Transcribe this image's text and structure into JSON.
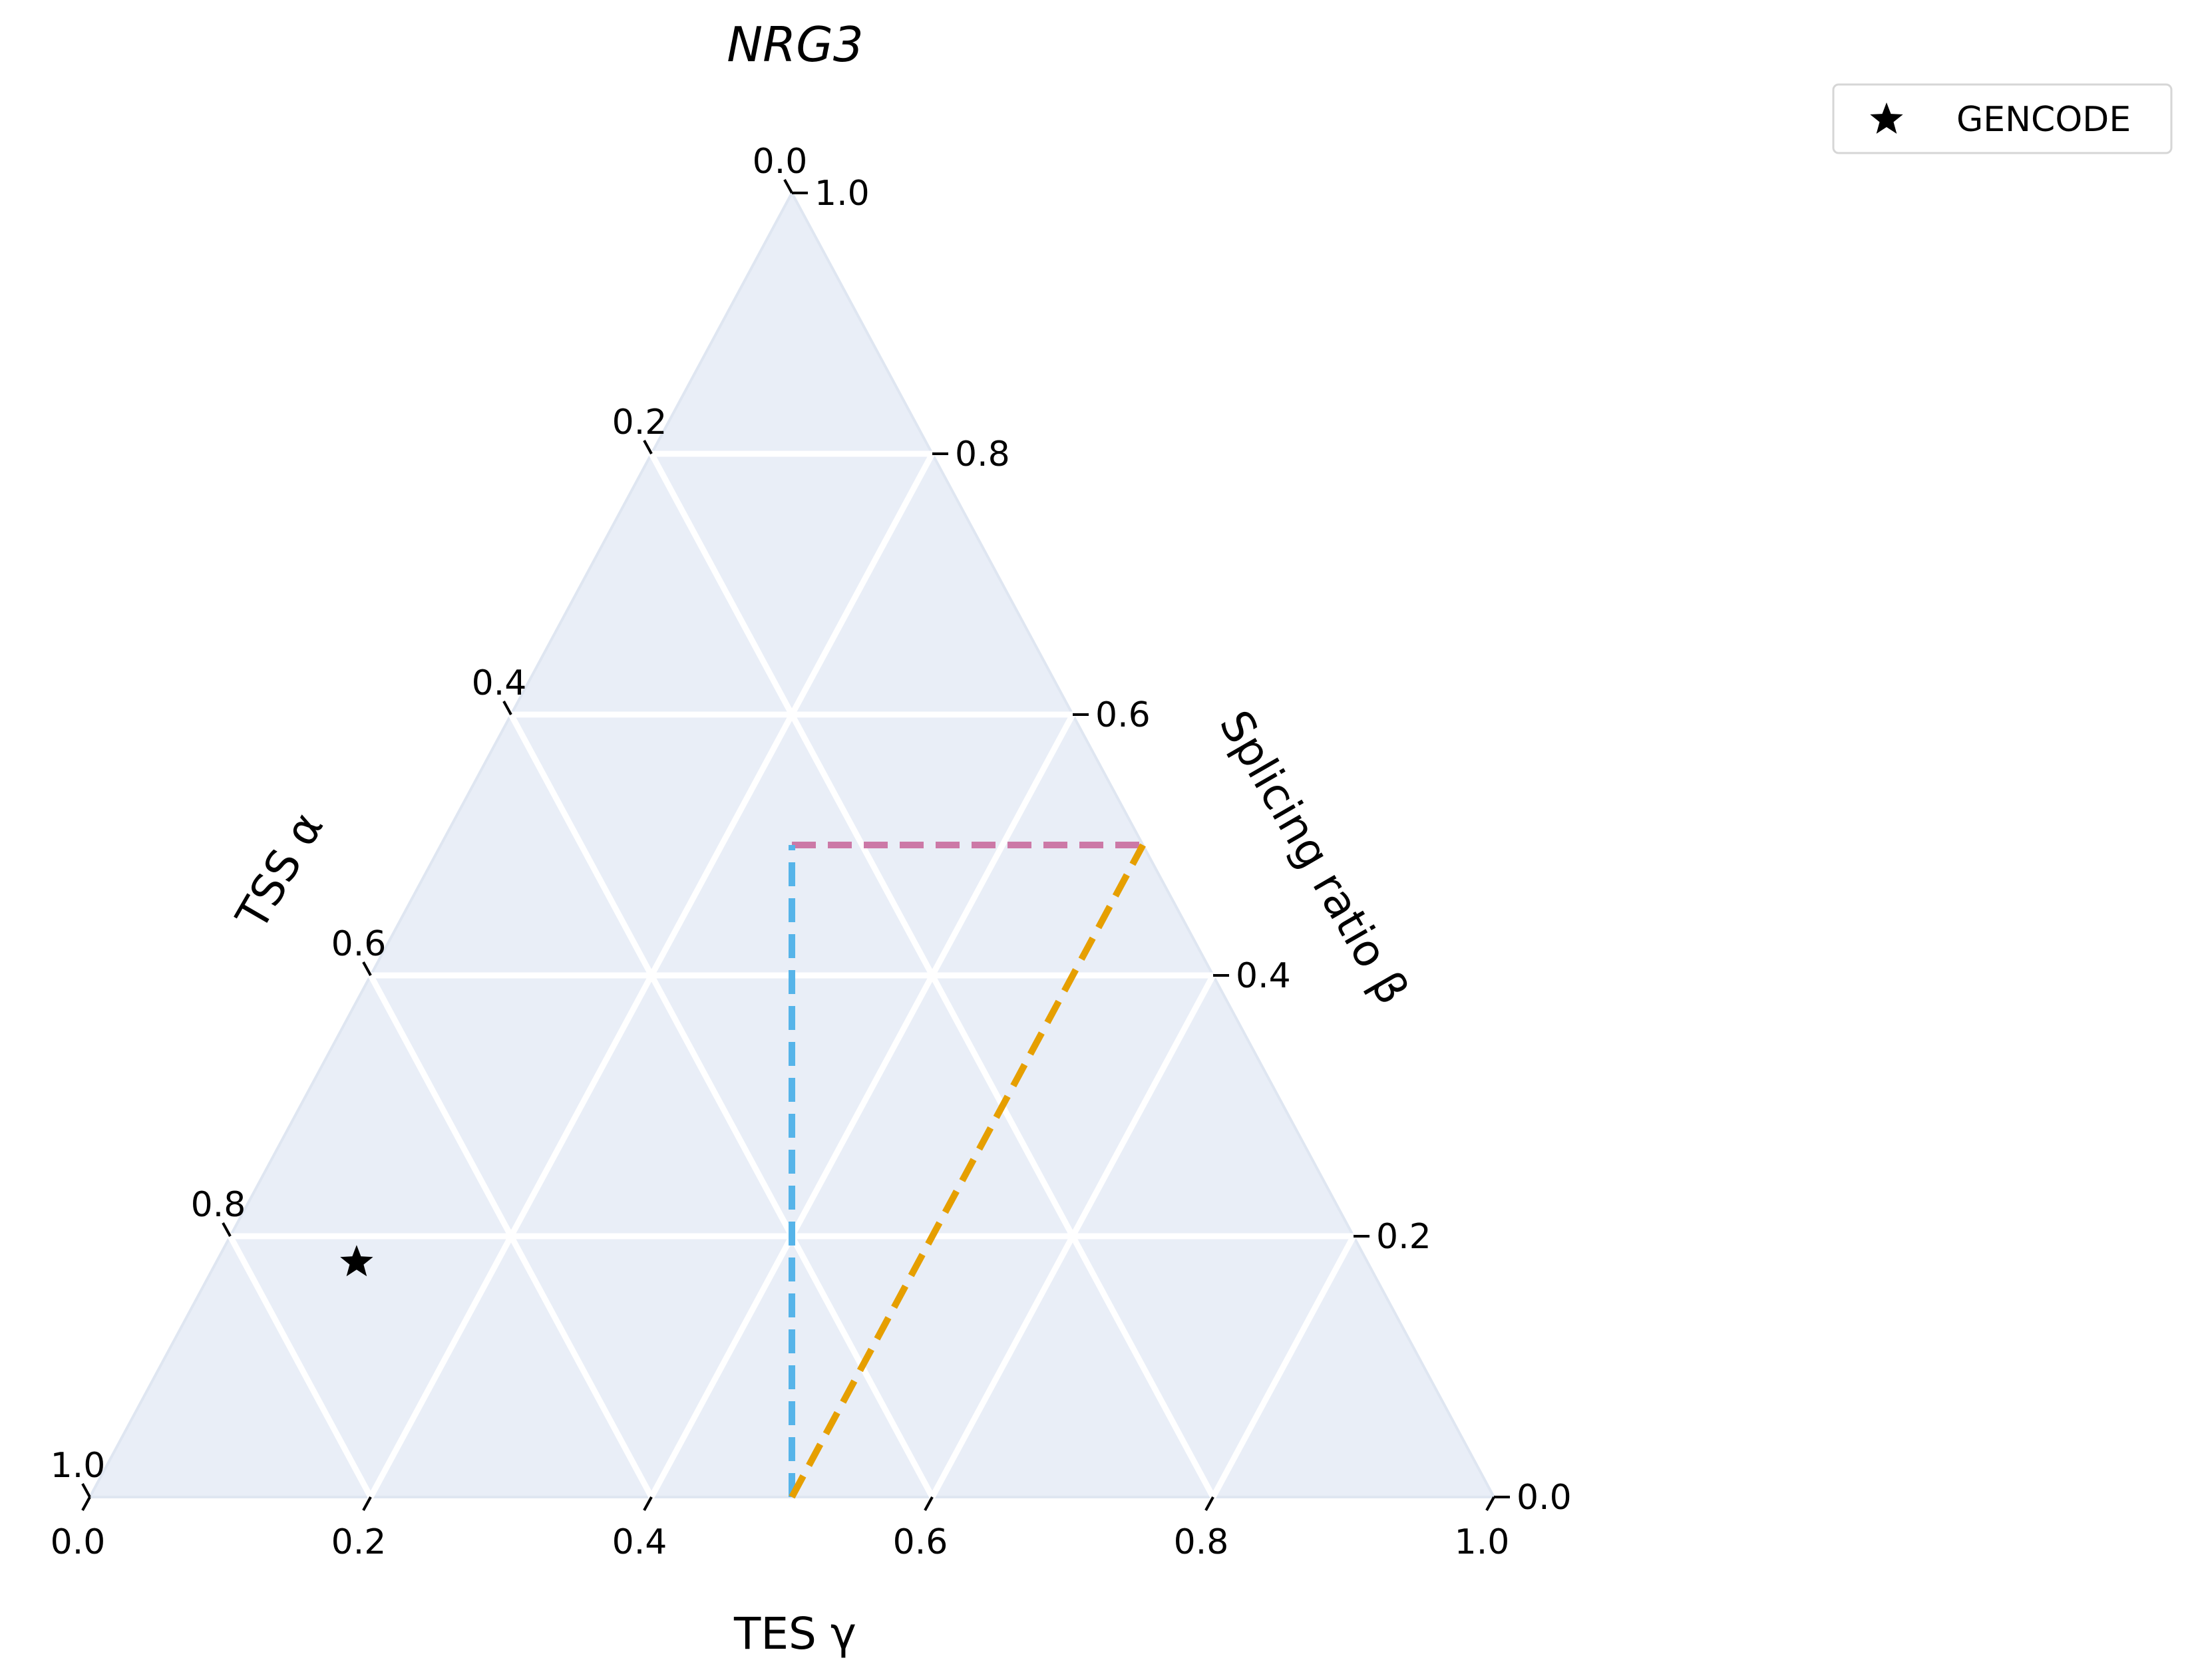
{
  "chart_data": {
    "type": "ternary",
    "title": "NRG3",
    "axes": {
      "left": {
        "label": "TSS α",
        "ticks": [
          "0.0",
          "0.2",
          "0.4",
          "0.6",
          "0.8",
          "1.0"
        ]
      },
      "right": {
        "label": "Splicing ratio β",
        "ticks": [
          "0.0",
          "0.2",
          "0.4",
          "0.6",
          "0.8",
          "1.0"
        ]
      },
      "bottom": {
        "label": "TES γ",
        "ticks": [
          "0.0",
          "0.2",
          "0.4",
          "0.6",
          "0.8",
          "1.0"
        ]
      }
    },
    "grid": true,
    "background_color": "#e9eef7",
    "grid_color": "#ffffff",
    "lines": [
      {
        "style": "dashed",
        "color": "#cc79a7",
        "from": {
          "tss": 0.25,
          "splicing": 0.5,
          "tes": 0.25
        },
        "to": {
          "tss": 0.0,
          "splicing": 0.5,
          "tes": 0.5
        }
      },
      {
        "style": "dashed",
        "color": "#56b4e9",
        "from": {
          "tss": 0.5,
          "splicing": 0.0,
          "tes": 0.5
        },
        "to": {
          "tss": 0.25,
          "splicing": 0.5,
          "tes": 0.25
        }
      },
      {
        "style": "dashed",
        "color": "#e69f00",
        "from": {
          "tss": 0.5,
          "splicing": 0.0,
          "tes": 0.5
        },
        "to": {
          "tss": 0.0,
          "splicing": 0.5,
          "tes": 0.5
        }
      }
    ],
    "points": [
      {
        "series": "GENCODE",
        "marker": "star",
        "color": "#000000",
        "tss": 0.72,
        "splicing": 0.18,
        "tes": 0.1
      }
    ],
    "legend": {
      "placement": "outside-top-right",
      "entries": [
        {
          "label": "GENCODE",
          "marker": "star"
        }
      ]
    }
  }
}
